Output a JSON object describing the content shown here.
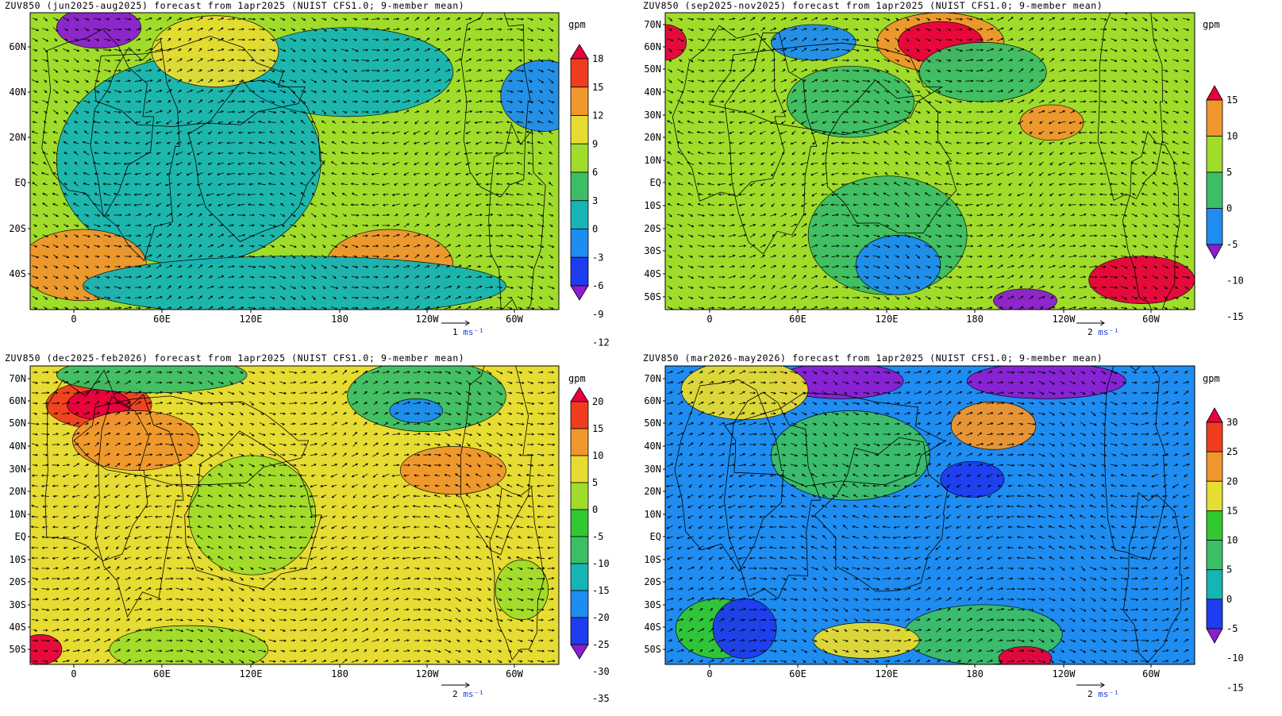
{
  "panels": [
    {
      "title": "ZUV850 (jun2025-aug2025) forecast from 1apr2025 (NUIST CFS1.0; 9-member mean)",
      "unit": "gpm",
      "lat_labels": [
        "60N",
        "40N",
        "20N",
        "EQ",
        "20S",
        "40S"
      ],
      "lon_labels": [
        "0",
        "60E",
        "120E",
        "180",
        "120W",
        "60W"
      ],
      "colorbar": {
        "labels": [
          "18",
          "15",
          "12",
          "9",
          "6",
          "3",
          "0",
          "-3",
          "-6",
          "-9",
          "-12"
        ],
        "colors": [
          "#e8003c",
          "#f03c1e",
          "#f0962d",
          "#e6dc32",
          "#a0dc2a",
          "#3cbe66",
          "#16b4b4",
          "#1e8cf0",
          "#1e3cf0",
          "#8c1ed2"
        ]
      },
      "ref_vector": "1 ms⁻¹"
    },
    {
      "title": "ZUV850 (sep2025-nov2025) forecast from 1apr2025 (NUIST CFS1.0; 9-member mean)",
      "unit": "gpm",
      "lat_labels": [
        "70N",
        "60N",
        "50N",
        "40N",
        "30N",
        "20N",
        "10N",
        "EQ",
        "10S",
        "20S",
        "30S",
        "40S",
        "50S"
      ],
      "lon_labels": [
        "0",
        "60E",
        "120E",
        "180",
        "120W",
        "60W"
      ],
      "colorbar": {
        "labels": [
          "15",
          "10",
          "5",
          "0",
          "-5",
          "-10",
          "-15"
        ],
        "colors": [
          "#e8003c",
          "#f0962d",
          "#a0dc2a",
          "#3cbe66",
          "#1e8cf0",
          "#8c1ed2"
        ]
      },
      "ref_vector": "2 ms⁻¹"
    },
    {
      "title": "ZUV850 (dec2025-feb2026) forecast from 1apr2025 (NUIST CFS1.0; 9-member mean)",
      "unit": "gpm",
      "lat_labels": [
        "70N",
        "60N",
        "50N",
        "40N",
        "30N",
        "20N",
        "10N",
        "EQ",
        "10S",
        "20S",
        "30S",
        "40S",
        "50S"
      ],
      "lon_labels": [
        "0",
        "60E",
        "120E",
        "180",
        "120W",
        "60W"
      ],
      "colorbar": {
        "labels": [
          "20",
          "15",
          "10",
          "5",
          "0",
          "-5",
          "-10",
          "-15",
          "-20",
          "-25",
          "-30",
          "-35"
        ],
        "colors": [
          "#e8003c",
          "#f03c1e",
          "#f0962d",
          "#e6dc32",
          "#a0dc2a",
          "#32c832",
          "#3cbe66",
          "#16b4b4",
          "#1e8cf0",
          "#1e3cf0",
          "#8c1ed2"
        ]
      },
      "ref_vector": "2 ms⁻¹"
    },
    {
      "title": "ZUV850 (mar2026-may2026) forecast from 1apr2025 (NUIST CFS1.0; 9-member mean)",
      "unit": "gpm",
      "lat_labels": [
        "70N",
        "60N",
        "50N",
        "40N",
        "30N",
        "20N",
        "10N",
        "EQ",
        "10S",
        "20S",
        "30S",
        "40S",
        "50S"
      ],
      "lon_labels": [
        "0",
        "60E",
        "120E",
        "180",
        "120W",
        "60W"
      ],
      "colorbar": {
        "labels": [
          "30",
          "25",
          "20",
          "15",
          "10",
          "5",
          "0",
          "-5",
          "-10",
          "-15"
        ],
        "colors": [
          "#e8003c",
          "#f03c1e",
          "#f0962d",
          "#e6dc32",
          "#32c832",
          "#3cbe66",
          "#16b4b4",
          "#1e3cf0",
          "#8c1ed2"
        ]
      },
      "ref_vector": "2 ms⁻¹"
    }
  ]
}
